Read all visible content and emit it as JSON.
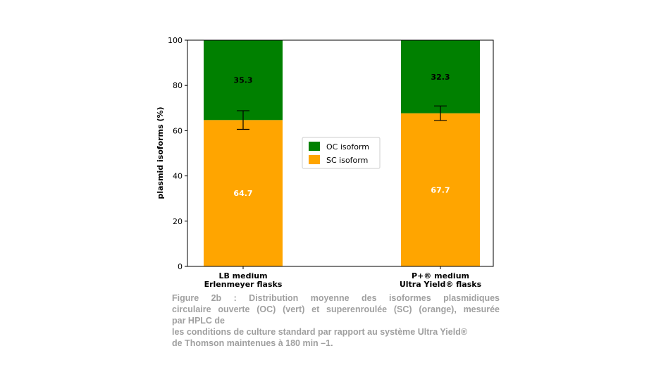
{
  "chart_data": {
    "type": "bar",
    "stacked": true,
    "categories": [
      [
        "LB medium",
        "Erlenmeyer flasks"
      ],
      [
        "P+® medium",
        "Ultra Yield® flasks"
      ]
    ],
    "series": [
      {
        "name": "SC isoform",
        "color": "#ffa500",
        "label_color": "#ffffff",
        "values": [
          64.7,
          67.7
        ]
      },
      {
        "name": "OC isoform",
        "color": "#008000",
        "label_color": "#000000",
        "values": [
          35.3,
          32.3
        ]
      }
    ],
    "error_bars": [
      {
        "center": 64.7,
        "low": 60.6,
        "high": 68.8
      },
      {
        "center": 67.7,
        "low": 64.5,
        "high": 70.9
      }
    ],
    "ylabel": "plasmid isoforms (%)",
    "xlabel": "",
    "ylim": [
      0,
      100
    ],
    "yticks": [
      "0",
      "20",
      "40",
      "60",
      "80",
      "100"
    ],
    "legend": {
      "placement": "center",
      "order": [
        "OC isoform",
        "SC isoform"
      ]
    }
  },
  "caption": {
    "line1": "Figure 2b : Distribution moyenne des isoformes plasmidiques",
    "line2": "circulaire ouverte (OC) (vert) et superenroulée (SC) (orange), mesurée",
    "line3": "par HPLC de",
    "line4": "les conditions de culture standard par rapport au système Ultra Yield®",
    "line5": "de Thomson maintenues à 180 min –1."
  }
}
